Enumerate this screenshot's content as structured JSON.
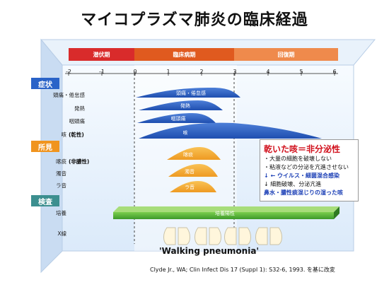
{
  "title": "マイコプラズマ肺炎の臨床経過",
  "phases": [
    {
      "label": "潜伏期",
      "color": "#d92b2b"
    },
    {
      "label": "臨床病期",
      "color": "#e05a1f"
    },
    {
      "label": "回復期",
      "color": "#ef8a4c"
    }
  ],
  "ticks": [
    "-2",
    "-1",
    "0",
    "1",
    "2",
    "3",
    "4",
    "5",
    "6"
  ],
  "categories": [
    {
      "label": "症状",
      "color": "#2a63c8"
    },
    {
      "label": "所見",
      "color": "#f0941e"
    },
    {
      "label": "検査",
      "color": "#3c8f8f"
    }
  ],
  "rows": {
    "symptoms": [
      "頭痛・倦怠感",
      "発熱",
      "咽頭痛",
      "咳"
    ],
    "findings": [
      "喀痰",
      "濁音",
      "ラ音"
    ],
    "tests": [
      "培養",
      "X線"
    ]
  },
  "side_labels": {
    "dry": "(乾性)",
    "non_purulent": "(非膿性)"
  },
  "shape_labels": {
    "headache": "頭痛・倦怠感",
    "fever": "発熱",
    "sore_throat": "咽頭痛",
    "cough": "咳",
    "sputum": "喀痰",
    "dullness": "濁音",
    "rales": "ラ音",
    "culture": "培養陽性"
  },
  "box": {
    "heading": "乾いた咳＝非分泌性",
    "line1": "・大量の細胞を破壊しない",
    "line2": "・粘液などの分泌を亢進させない",
    "line3": "↓ ← ウイルス・細菌混合感染",
    "line4": "↓ 細胞破壊、分泌亢進",
    "line5": "鼻水・膿性痰混じりの湿った咳"
  },
  "walking": "'Walking pneumonia'",
  "citation": "Clyde Jr., WA; Clin Infect Dis 17 (Suppl 1): S32-6, 1993. を基に改変"
}
